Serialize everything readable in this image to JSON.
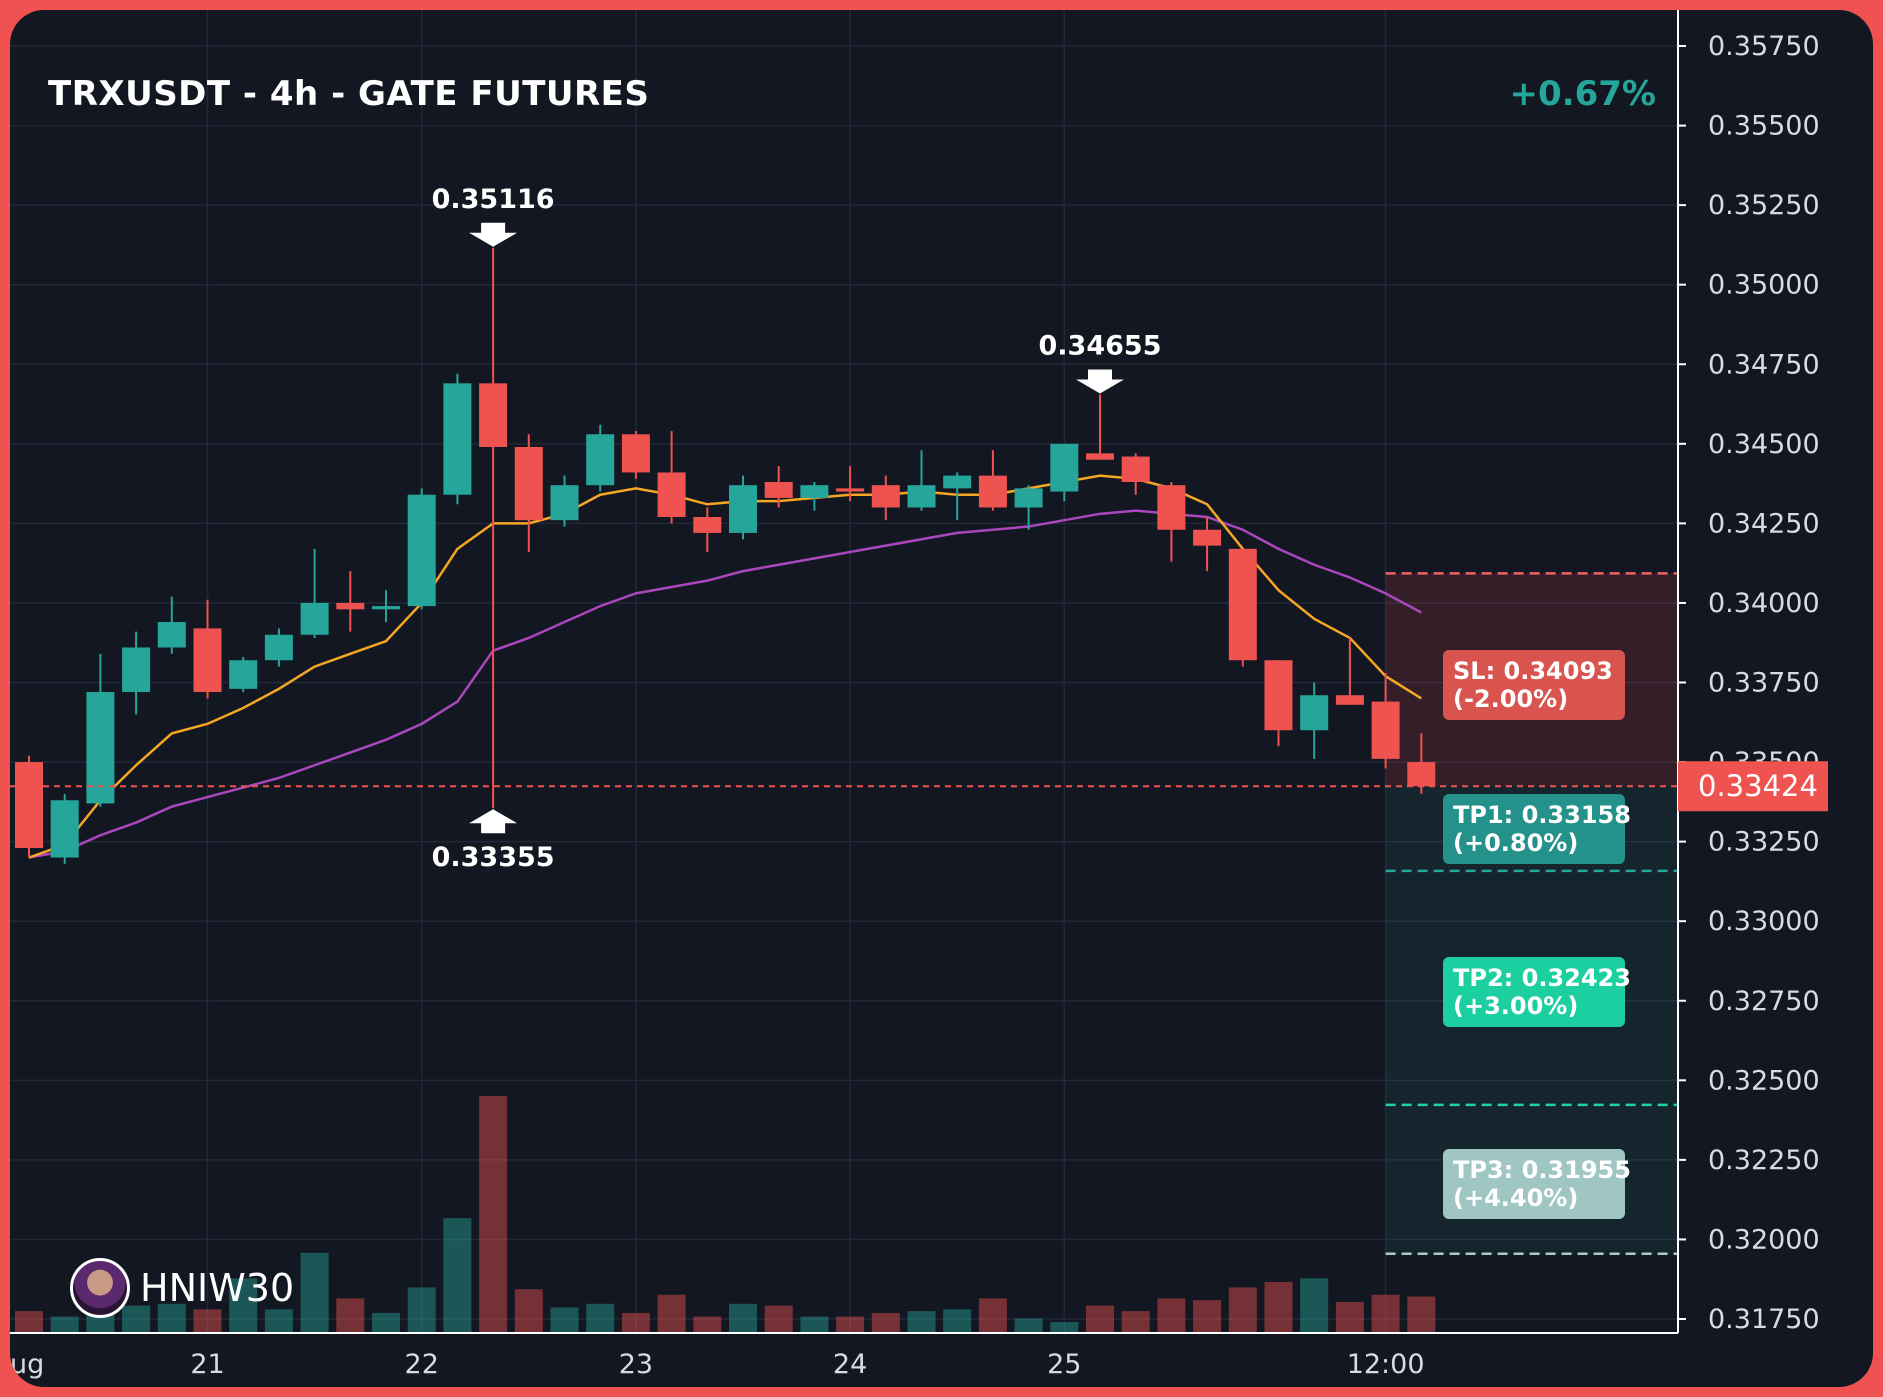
{
  "header": {
    "title": "TRXUSDT - 4h - GATE FUTURES",
    "change": "+0.67%"
  },
  "watermark": {
    "handle": "HNIW30"
  },
  "colors": {
    "up": "#26a69a",
    "down": "#ef5350",
    "ema_fast": "#f5a623",
    "ema_slow": "#ab47bc",
    "background": "#131722",
    "frame": "#f05252"
  },
  "chart_data": {
    "type": "candlestick",
    "symbol": "TRXUSDT",
    "timeframe": "4h",
    "exchange": "GATE FUTURES",
    "ylim": [
      0.3172,
      0.3581
    ],
    "y_ticks": [
      "0.35750",
      "0.35500",
      "0.35250",
      "0.35000",
      "0.34750",
      "0.34500",
      "0.34250",
      "0.34000",
      "0.33750",
      "0.33500",
      "0.33250",
      "0.33000",
      "0.32750",
      "0.32500",
      "0.32250",
      "0.32000",
      "0.31750"
    ],
    "x_ticks": [
      {
        "label": "ug",
        "i": -1.4
      },
      {
        "label": "21",
        "i": 5
      },
      {
        "label": "22",
        "i": 11
      },
      {
        "label": "23",
        "i": 17
      },
      {
        "label": "24",
        "i": 23
      },
      {
        "label": "25",
        "i": 29
      },
      {
        "label": "12:00",
        "i": 38
      }
    ],
    "candles": [
      [
        0.335,
        0.3352,
        0.332,
        0.3323
      ],
      [
        0.332,
        0.334,
        0.3318,
        0.3338
      ],
      [
        0.3337,
        0.3384,
        0.3336,
        0.3372
      ],
      [
        0.3372,
        0.3391,
        0.3365,
        0.3386
      ],
      [
        0.3386,
        0.3402,
        0.3384,
        0.3394
      ],
      [
        0.3392,
        0.3401,
        0.337,
        0.3372
      ],
      [
        0.3373,
        0.3383,
        0.3372,
        0.3382
      ],
      [
        0.3382,
        0.3392,
        0.338,
        0.339
      ],
      [
        0.339,
        0.3417,
        0.3389,
        0.34
      ],
      [
        0.34,
        0.341,
        0.3391,
        0.3398
      ],
      [
        0.3398,
        0.3404,
        0.3394,
        0.3399
      ],
      [
        0.3399,
        0.3436,
        0.3398,
        0.3434
      ],
      [
        0.3434,
        0.3472,
        0.3431,
        0.3469
      ],
      [
        0.3469,
        0.35116,
        0.33355,
        0.3449
      ],
      [
        0.3449,
        0.3453,
        0.3416,
        0.3426
      ],
      [
        0.3426,
        0.344,
        0.3424,
        0.3437
      ],
      [
        0.3437,
        0.3456,
        0.3435,
        0.3453
      ],
      [
        0.3453,
        0.3454,
        0.3439,
        0.3441
      ],
      [
        0.3441,
        0.3454,
        0.3425,
        0.3427
      ],
      [
        0.3427,
        0.343,
        0.3416,
        0.3422
      ],
      [
        0.3422,
        0.344,
        0.342,
        0.3437
      ],
      [
        0.3438,
        0.3443,
        0.343,
        0.3433
      ],
      [
        0.3433,
        0.3438,
        0.3429,
        0.3437
      ],
      [
        0.3436,
        0.3443,
        0.3432,
        0.3435
      ],
      [
        0.3437,
        0.344,
        0.3426,
        0.343
      ],
      [
        0.343,
        0.3448,
        0.3429,
        0.3437
      ],
      [
        0.3436,
        0.3441,
        0.3426,
        0.344
      ],
      [
        0.344,
        0.3448,
        0.3429,
        0.343
      ],
      [
        0.343,
        0.3437,
        0.3423,
        0.3436
      ],
      [
        0.3435,
        0.345,
        0.3432,
        0.345
      ],
      [
        0.3447,
        0.34655,
        0.3445,
        0.3445
      ],
      [
        0.3446,
        0.3447,
        0.3434,
        0.3438
      ],
      [
        0.3437,
        0.3438,
        0.3413,
        0.3423
      ],
      [
        0.3423,
        0.3427,
        0.341,
        0.3418
      ],
      [
        0.3417,
        0.3417,
        0.338,
        0.3382
      ],
      [
        0.3382,
        0.3382,
        0.3355,
        0.336
      ],
      [
        0.336,
        0.3375,
        0.3351,
        0.3371
      ],
      [
        0.3371,
        0.3389,
        0.3368,
        0.3368
      ],
      [
        0.3369,
        0.3378,
        0.3348,
        0.3351
      ],
      [
        0.335,
        0.3359,
        0.334,
        0.33424
      ]
    ],
    "volume": [
      12,
      9,
      20,
      15,
      16,
      13,
      30,
      13,
      44,
      19,
      11,
      25,
      63,
      130,
      24,
      14,
      16,
      11,
      21,
      9,
      16,
      15,
      9,
      9,
      11,
      12,
      13,
      19,
      8,
      6,
      15,
      12,
      19,
      18,
      25,
      28,
      30,
      17,
      21,
      20
    ],
    "ema_fast": [
      0.332,
      0.3324,
      0.3338,
      0.3349,
      0.3359,
      0.3362,
      0.3367,
      0.3373,
      0.338,
      0.3384,
      0.3388,
      0.34,
      0.3417,
      0.3425,
      0.3425,
      0.3428,
      0.3434,
      0.3436,
      0.3434,
      0.3431,
      0.3432,
      0.3432,
      0.3433,
      0.3434,
      0.3434,
      0.3435,
      0.3434,
      0.3434,
      0.3436,
      0.3438,
      0.344,
      0.3439,
      0.3436,
      0.3431,
      0.3417,
      0.3404,
      0.3395,
      0.3389,
      0.3377,
      0.337
    ],
    "ema_slow": [
      0.332,
      0.3322,
      0.3327,
      0.3331,
      0.3336,
      0.3339,
      0.3342,
      0.3345,
      0.3349,
      0.3353,
      0.3357,
      0.3362,
      0.3369,
      0.3385,
      0.3389,
      0.3394,
      0.3399,
      0.3403,
      0.3405,
      0.3407,
      0.341,
      0.3412,
      0.3414,
      0.3416,
      0.3418,
      0.342,
      0.3422,
      0.3423,
      0.3424,
      0.3426,
      0.3428,
      0.3429,
      0.3428,
      0.3427,
      0.3423,
      0.3417,
      0.3412,
      0.3408,
      0.3403,
      0.3397
    ],
    "annotations": [
      {
        "label": "0.35116",
        "i": 13,
        "price": 0.35116,
        "type": "high"
      },
      {
        "label": "0.34655",
        "i": 30,
        "price": 0.34655,
        "type": "high"
      },
      {
        "label": "0.33355",
        "i": 13,
        "price": 0.33355,
        "type": "low"
      }
    ],
    "current_price": {
      "value": 0.33424,
      "label": "0.33424"
    },
    "levels": [
      {
        "name": "SL",
        "price": 0.34093,
        "line1": "SL: 0.34093",
        "line2": "(-2.00%)",
        "color": "#f06262",
        "box": "#d9534f"
      },
      {
        "name": "TP1",
        "price": 0.33158,
        "line1": "TP1: 0.33158",
        "line2": "(+0.80%)",
        "color": "#26a69a",
        "box": "#24918a"
      },
      {
        "name": "TP2",
        "price": 0.32423,
        "line1": "TP2: 0.32423",
        "line2": "(+3.00%)",
        "color": "#1dd3a7",
        "box": "#1ccfa0"
      },
      {
        "name": "TP3",
        "price": 0.31955,
        "line1": "TP3: 0.31955",
        "line2": "(+4.40%)",
        "color": "#a8c9c6",
        "box": "#9fc6c2"
      }
    ]
  }
}
